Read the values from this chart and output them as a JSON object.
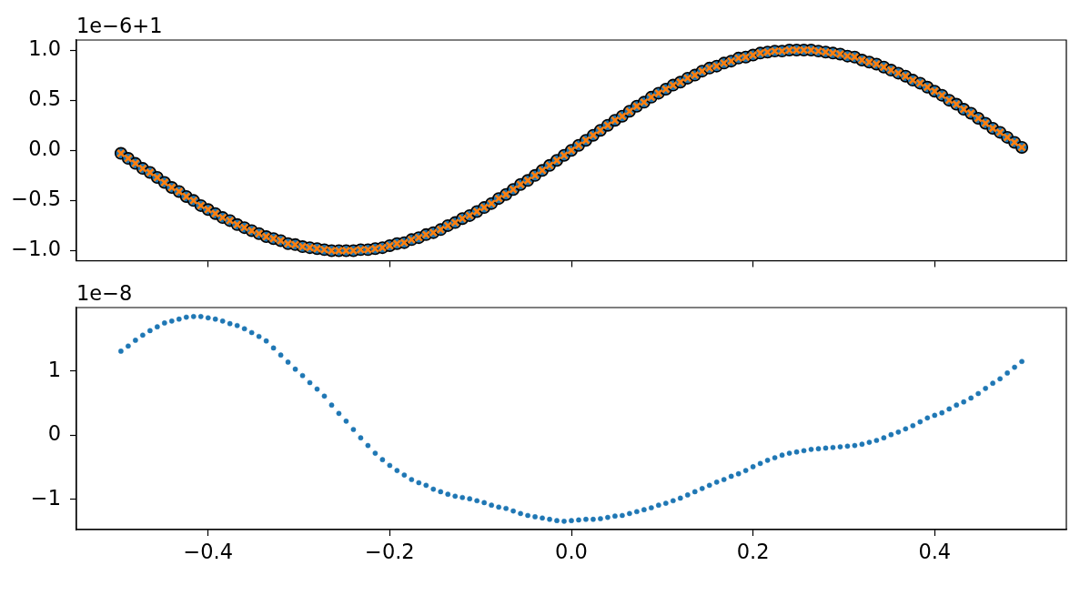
{
  "chart_data": [
    {
      "type": "scatter",
      "xlim": [
        -0.545,
        0.545
      ],
      "xticks": [
        -0.4,
        -0.2,
        0,
        0.2,
        0.4
      ],
      "ylim": [
        -1.1,
        1.1
      ],
      "yticks": [
        {
          "value": -1,
          "label": "−1.0"
        },
        {
          "value": -0.5,
          "label": "−0.5"
        },
        {
          "value": 0,
          "label": "0.0"
        },
        {
          "value": 0.5,
          "label": "0.5"
        },
        {
          "value": 1,
          "label": "1.0"
        }
      ],
      "tick_labels": "y",
      "annotations": [
        "1e−6+1"
      ],
      "x": [
        -0.496,
        -0.488,
        -0.48,
        -0.472,
        -0.464,
        -0.456,
        -0.448,
        -0.44,
        -0.432,
        -0.424,
        -0.416,
        -0.408,
        -0.4,
        -0.392,
        -0.384,
        -0.376,
        -0.368,
        -0.36,
        -0.352,
        -0.344,
        -0.336,
        -0.328,
        -0.32,
        -0.312,
        -0.304,
        -0.296,
        -0.288,
        -0.28,
        -0.272,
        -0.264,
        -0.256,
        -0.248,
        -0.24,
        -0.232,
        -0.224,
        -0.216,
        -0.208,
        -0.2,
        -0.192,
        -0.184,
        -0.176,
        -0.168,
        -0.16,
        -0.152,
        -0.144,
        -0.136,
        -0.128,
        -0.12,
        -0.112,
        -0.104,
        -0.096,
        -0.088,
        -0.08,
        -0.072,
        -0.064,
        -0.056,
        -0.048,
        -0.04,
        -0.032,
        -0.024,
        -0.016,
        -0.008,
        0,
        0.008,
        0.016,
        0.024,
        0.032,
        0.04,
        0.048,
        0.056,
        0.064,
        0.072,
        0.08,
        0.088,
        0.096,
        0.104,
        0.112,
        0.12,
        0.128,
        0.136,
        0.144,
        0.152,
        0.16,
        0.168,
        0.176,
        0.184,
        0.192,
        0.2,
        0.208,
        0.216,
        0.224,
        0.232,
        0.24,
        0.248,
        0.256,
        0.264,
        0.272,
        0.28,
        0.288,
        0.296,
        0.304,
        0.312,
        0.32,
        0.328,
        0.336,
        0.344,
        0.352,
        0.36,
        0.368,
        0.376,
        0.384,
        0.392,
        0.4,
        0.408,
        0.416,
        0.424,
        0.432,
        0.44,
        0.448,
        0.456,
        0.464,
        0.472,
        0.48,
        0.488,
        0.496
      ],
      "series": [
        {
          "color": "#1f77b4",
          "marker": "circle",
          "values": [
            -0.03,
            -0.08,
            -0.13,
            -0.18,
            -0.22,
            -0.27,
            -0.32,
            -0.37,
            -0.41,
            -0.46,
            -0.5,
            -0.55,
            -0.59,
            -0.63,
            -0.67,
            -0.7,
            -0.74,
            -0.77,
            -0.8,
            -0.83,
            -0.86,
            -0.88,
            -0.9,
            -0.93,
            -0.94,
            -0.96,
            -0.97,
            -0.98,
            -0.99,
            -1,
            -1,
            -1,
            -1,
            -0.99,
            -0.99,
            -0.98,
            -0.97,
            -0.95,
            -0.93,
            -0.92,
            -0.89,
            -0.87,
            -0.84,
            -0.82,
            -0.79,
            -0.75,
            -0.72,
            -0.68,
            -0.65,
            -0.61,
            -0.57,
            -0.53,
            -0.48,
            -0.44,
            -0.39,
            -0.34,
            -0.3,
            -0.25,
            -0.2,
            -0.15,
            -0.1,
            -0.05,
            0,
            0.05,
            0.1,
            0.15,
            0.2,
            0.25,
            0.3,
            0.34,
            0.39,
            0.44,
            0.48,
            0.53,
            0.57,
            0.61,
            0.65,
            0.68,
            0.72,
            0.75,
            0.79,
            0.82,
            0.84,
            0.87,
            0.89,
            0.92,
            0.93,
            0.95,
            0.97,
            0.98,
            0.99,
            0.99,
            1,
            1,
            1,
            1,
            0.99,
            0.98,
            0.97,
            0.96,
            0.94,
            0.93,
            0.9,
            0.88,
            0.86,
            0.83,
            0.8,
            0.77,
            0.74,
            0.7,
            0.67,
            0.63,
            0.59,
            0.55,
            0.5,
            0.46,
            0.41,
            0.37,
            0.32,
            0.27,
            0.22,
            0.18,
            0.13,
            0.08,
            0.03
          ]
        },
        {
          "color": "#ff7f0e",
          "marker": "cross",
          "values": [
            -0.03,
            -0.08,
            -0.13,
            -0.18,
            -0.22,
            -0.27,
            -0.32,
            -0.37,
            -0.41,
            -0.46,
            -0.5,
            -0.55,
            -0.59,
            -0.63,
            -0.67,
            -0.7,
            -0.74,
            -0.77,
            -0.8,
            -0.83,
            -0.86,
            -0.88,
            -0.9,
            -0.93,
            -0.94,
            -0.96,
            -0.97,
            -0.98,
            -0.99,
            -1,
            -1,
            -1,
            -1,
            -0.99,
            -0.99,
            -0.98,
            -0.97,
            -0.95,
            -0.93,
            -0.92,
            -0.89,
            -0.87,
            -0.84,
            -0.82,
            -0.79,
            -0.75,
            -0.72,
            -0.68,
            -0.65,
            -0.61,
            -0.57,
            -0.53,
            -0.48,
            -0.44,
            -0.39,
            -0.34,
            -0.3,
            -0.25,
            -0.2,
            -0.15,
            -0.1,
            -0.05,
            0,
            0.05,
            0.1,
            0.15,
            0.2,
            0.25,
            0.3,
            0.34,
            0.39,
            0.44,
            0.48,
            0.53,
            0.57,
            0.61,
            0.65,
            0.68,
            0.72,
            0.75,
            0.79,
            0.82,
            0.84,
            0.87,
            0.89,
            0.92,
            0.93,
            0.95,
            0.97,
            0.98,
            0.99,
            0.99,
            1,
            1,
            1,
            1,
            0.99,
            0.98,
            0.97,
            0.96,
            0.94,
            0.93,
            0.9,
            0.88,
            0.86,
            0.83,
            0.8,
            0.77,
            0.74,
            0.7,
            0.67,
            0.63,
            0.59,
            0.55,
            0.5,
            0.46,
            0.41,
            0.37,
            0.32,
            0.27,
            0.22,
            0.18,
            0.13,
            0.08,
            0.03
          ]
        }
      ]
    },
    {
      "type": "scatter",
      "xlim": [
        -0.545,
        0.545
      ],
      "xticks": [
        {
          "value": -0.4,
          "label": "−0.4"
        },
        {
          "value": -0.2,
          "label": "−0.2"
        },
        {
          "value": 0,
          "label": "0.0"
        },
        {
          "value": 0.2,
          "label": "0.2"
        },
        {
          "value": 0.4,
          "label": "0.4"
        }
      ],
      "ylim": [
        -1.47,
        1.99
      ],
      "yticks": [
        {
          "value": -1,
          "label": "−1"
        },
        {
          "value": 0,
          "label": "0"
        },
        {
          "value": 1,
          "label": "1"
        }
      ],
      "annotations": [
        "1e−8"
      ],
      "x": [
        -0.496,
        -0.488,
        -0.48,
        -0.472,
        -0.464,
        -0.456,
        -0.448,
        -0.44,
        -0.432,
        -0.424,
        -0.416,
        -0.408,
        -0.4,
        -0.392,
        -0.384,
        -0.376,
        -0.368,
        -0.36,
        -0.352,
        -0.344,
        -0.336,
        -0.328,
        -0.32,
        -0.312,
        -0.304,
        -0.296,
        -0.288,
        -0.28,
        -0.272,
        -0.264,
        -0.256,
        -0.248,
        -0.24,
        -0.232,
        -0.224,
        -0.216,
        -0.208,
        -0.2,
        -0.192,
        -0.184,
        -0.176,
        -0.168,
        -0.16,
        -0.152,
        -0.144,
        -0.136,
        -0.128,
        -0.12,
        -0.112,
        -0.104,
        -0.096,
        -0.088,
        -0.08,
        -0.072,
        -0.064,
        -0.056,
        -0.048,
        -0.04,
        -0.032,
        -0.024,
        -0.016,
        -0.008,
        0,
        0.008,
        0.016,
        0.024,
        0.032,
        0.04,
        0.048,
        0.056,
        0.064,
        0.072,
        0.08,
        0.088,
        0.096,
        0.104,
        0.112,
        0.12,
        0.128,
        0.136,
        0.144,
        0.152,
        0.16,
        0.168,
        0.176,
        0.184,
        0.192,
        0.2,
        0.208,
        0.216,
        0.224,
        0.232,
        0.24,
        0.248,
        0.256,
        0.264,
        0.272,
        0.28,
        0.288,
        0.296,
        0.304,
        0.312,
        0.32,
        0.328,
        0.336,
        0.344,
        0.352,
        0.36,
        0.368,
        0.376,
        0.384,
        0.392,
        0.4,
        0.408,
        0.416,
        0.424,
        0.432,
        0.44,
        0.448,
        0.456,
        0.464,
        0.472,
        0.48,
        0.488,
        0.496
      ],
      "series": [
        {
          "color": "#1f77b4",
          "marker": "circle",
          "values": [
            1.31,
            1.39,
            1.48,
            1.56,
            1.63,
            1.69,
            1.75,
            1.78,
            1.81,
            1.84,
            1.85,
            1.85,
            1.83,
            1.81,
            1.78,
            1.74,
            1.71,
            1.66,
            1.6,
            1.54,
            1.47,
            1.36,
            1.25,
            1.14,
            1.03,
            0.93,
            0.82,
            0.72,
            0.61,
            0.47,
            0.34,
            0.22,
            0.09,
            -0.04,
            -0.16,
            -0.28,
            -0.38,
            -0.47,
            -0.55,
            -0.62,
            -0.69,
            -0.74,
            -0.78,
            -0.84,
            -0.88,
            -0.92,
            -0.95,
            -0.97,
            -0.99,
            -1.02,
            -1.05,
            -1.09,
            -1.12,
            -1.14,
            -1.18,
            -1.22,
            -1.25,
            -1.27,
            -1.29,
            -1.31,
            -1.33,
            -1.34,
            -1.33,
            -1.32,
            -1.31,
            -1.31,
            -1.3,
            -1.28,
            -1.26,
            -1.25,
            -1.22,
            -1.19,
            -1.16,
            -1.13,
            -1.09,
            -1.06,
            -1.02,
            -0.98,
            -0.93,
            -0.88,
            -0.83,
            -0.78,
            -0.73,
            -0.69,
            -0.64,
            -0.6,
            -0.55,
            -0.49,
            -0.44,
            -0.39,
            -0.35,
            -0.31,
            -0.28,
            -0.26,
            -0.24,
            -0.22,
            -0.21,
            -0.2,
            -0.19,
            -0.18,
            -0.17,
            -0.16,
            -0.14,
            -0.11,
            -0.08,
            -0.04,
            0.01,
            0.05,
            0.1,
            0.15,
            0.21,
            0.27,
            0.31,
            0.35,
            0.41,
            0.47,
            0.52,
            0.58,
            0.65,
            0.73,
            0.81,
            0.88,
            0.97,
            1.06,
            1.15
          ]
        }
      ]
    }
  ]
}
